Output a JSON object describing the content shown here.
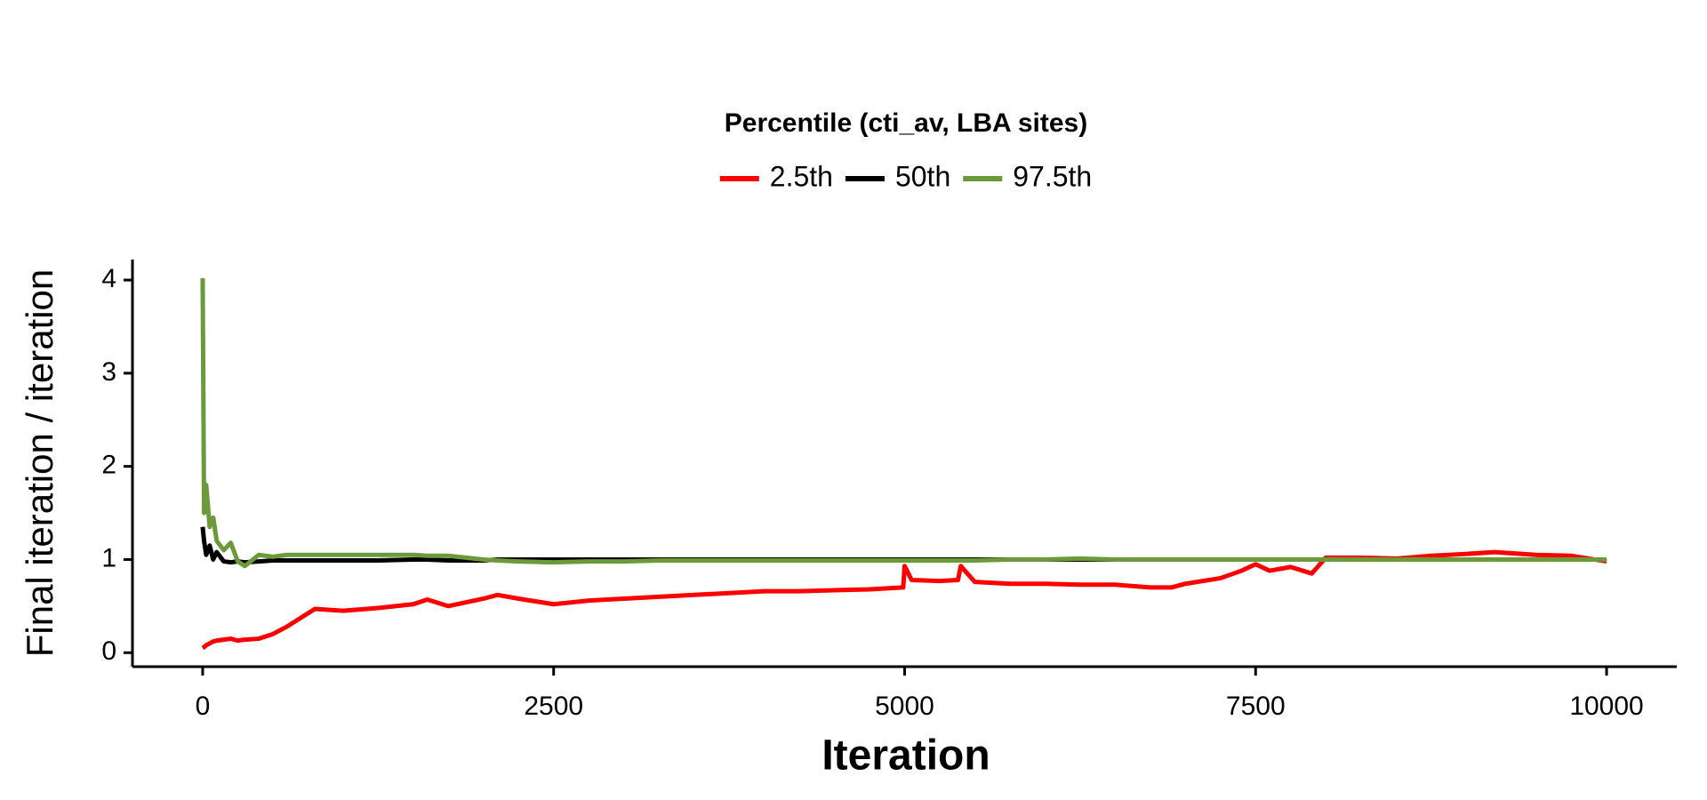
{
  "chart_data": {
    "type": "line",
    "legend_title": "Percentile (cti_av, LBA sites)",
    "legend_position": "top",
    "grid": false,
    "x_label": "Iteration",
    "y_label": "Final iteration / iteration",
    "xlim": [
      -500,
      10500
    ],
    "ylim": [
      -0.15,
      4.22
    ],
    "xticks": [
      0,
      2500,
      5000,
      7500,
      10000
    ],
    "yticks": [
      0,
      1,
      2,
      3,
      4
    ],
    "x": [
      0,
      10,
      25,
      50,
      75,
      100,
      150,
      200,
      250,
      300,
      400,
      500,
      600,
      800,
      1000,
      1250,
      1500,
      1600,
      1750,
      2000,
      2100,
      2250,
      2500,
      2750,
      3000,
      3250,
      3500,
      3750,
      4000,
      4250,
      4500,
      4750,
      4990,
      5000,
      5050,
      5250,
      5380,
      5400,
      5500,
      5750,
      6000,
      6250,
      6500,
      6750,
      6900,
      7000,
      7250,
      7400,
      7500,
      7600,
      7750,
      7900,
      8000,
      8250,
      8500,
      8750,
      9000,
      9200,
      9500,
      9750,
      10000
    ],
    "series": [
      {
        "name": "2.5th",
        "color": "#ff0000",
        "values": [
          0.05,
          0.06,
          0.08,
          0.1,
          0.12,
          0.13,
          0.14,
          0.15,
          0.13,
          0.14,
          0.15,
          0.2,
          0.28,
          0.47,
          0.45,
          0.48,
          0.52,
          0.57,
          0.5,
          0.58,
          0.62,
          0.58,
          0.52,
          0.56,
          0.58,
          0.6,
          0.62,
          0.64,
          0.66,
          0.66,
          0.67,
          0.68,
          0.7,
          0.93,
          0.78,
          0.77,
          0.78,
          0.93,
          0.76,
          0.74,
          0.74,
          0.73,
          0.73,
          0.7,
          0.7,
          0.74,
          0.8,
          0.88,
          0.95,
          0.88,
          0.92,
          0.85,
          1.02,
          1.02,
          1.01,
          1.04,
          1.06,
          1.08,
          1.05,
          1.04,
          0.98
        ]
      },
      {
        "name": "50th",
        "color": "#000000",
        "values": [
          1.35,
          1.2,
          1.05,
          1.15,
          1.0,
          1.08,
          0.98,
          0.97,
          0.98,
          0.97,
          0.98,
          0.99,
          0.99,
          0.99,
          0.99,
          0.99,
          1.0,
          1.0,
          0.99,
          0.99,
          1.0,
          1.0,
          1.0,
          1.0,
          1.0,
          1.0,
          1.0,
          1.0,
          1.0,
          1.0,
          1.0,
          1.0,
          1.0,
          1.0,
          1.0,
          1.0,
          1.0,
          1.0,
          1.0,
          1.0,
          1.0,
          1.0,
          1.0,
          1.0,
          1.0,
          1.0,
          1.0,
          1.0,
          1.0,
          1.0,
          1.0,
          1.0,
          1.0,
          1.0,
          1.0,
          1.0,
          1.0,
          1.0,
          1.0,
          1.0,
          1.0
        ]
      },
      {
        "name": "97.5th",
        "color": "#6a9a3a",
        "values": [
          4.02,
          1.5,
          1.8,
          1.35,
          1.45,
          1.2,
          1.1,
          1.18,
          0.98,
          0.93,
          1.05,
          1.03,
          1.05,
          1.05,
          1.05,
          1.05,
          1.05,
          1.04,
          1.04,
          1.0,
          0.99,
          0.98,
          0.97,
          0.98,
          0.98,
          0.99,
          0.99,
          0.99,
          0.99,
          0.99,
          0.99,
          0.99,
          0.99,
          0.99,
          0.99,
          0.99,
          0.99,
          0.99,
          0.99,
          1.0,
          1.0,
          1.01,
          1.0,
          1.0,
          1.0,
          1.0,
          1.0,
          1.0,
          1.0,
          1.0,
          1.0,
          1.0,
          1.0,
          1.0,
          1.0,
          1.0,
          1.0,
          1.0,
          1.0,
          1.0,
          1.0
        ]
      }
    ]
  }
}
